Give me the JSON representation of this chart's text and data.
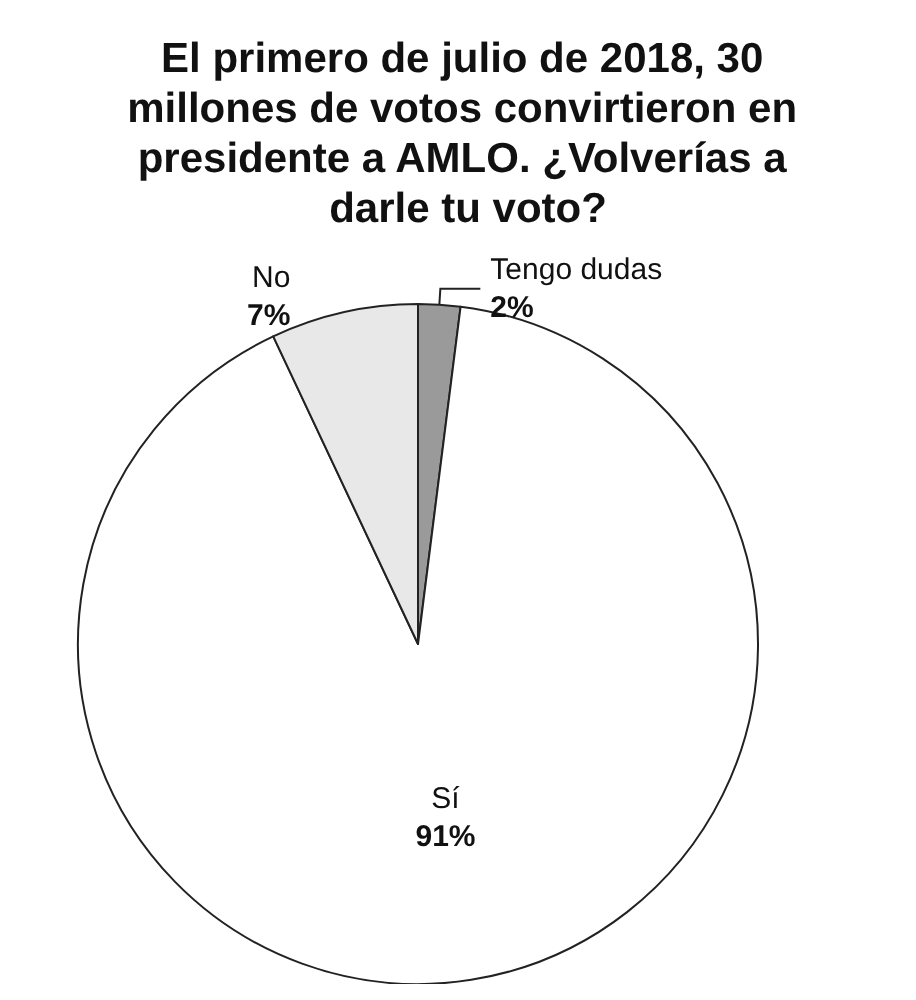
{
  "chart_data": {
    "type": "pie",
    "title": "El primero de julio de 2018, 30 millones de votos convirtieron en presidente a AMLO. ¿Volverías a darle tu voto?",
    "categories": [
      "Tengo dudas",
      "Sí",
      "No"
    ],
    "values": [
      2,
      91,
      7
    ],
    "colors": [
      "#9a9a9a",
      "#ffffff",
      "#e8e8e8"
    ],
    "value_labels": [
      "2%",
      "91%",
      "7%"
    ],
    "legend": false
  }
}
